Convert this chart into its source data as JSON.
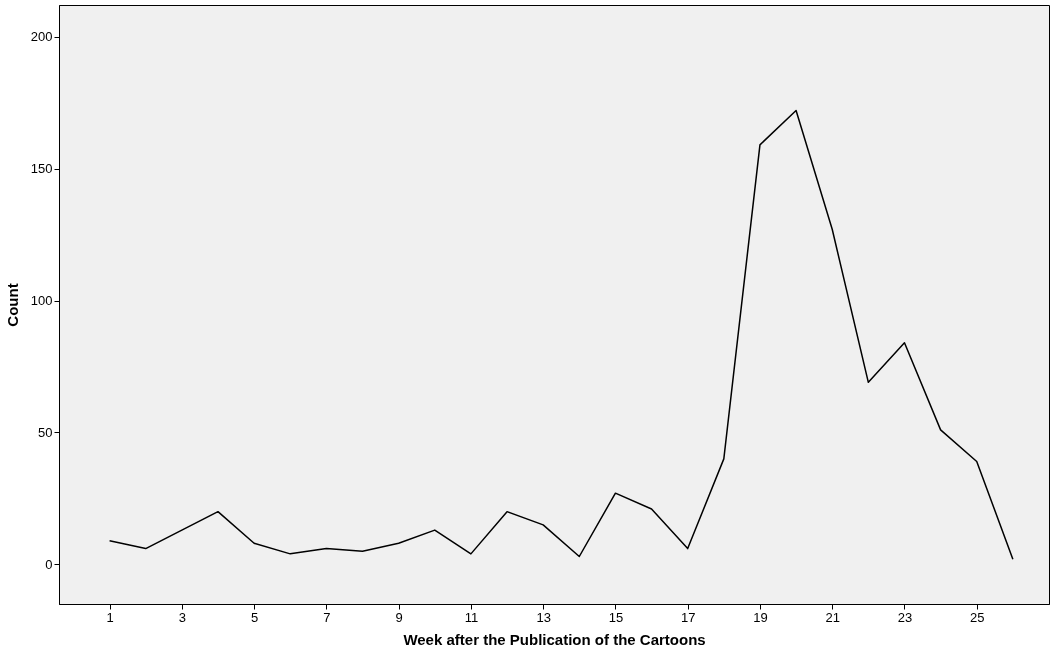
{
  "chart_data": {
    "type": "line",
    "xlabel": "Week after the Publication of the Cartoons",
    "ylabel": "Count",
    "x": [
      1,
      2,
      3,
      4,
      5,
      6,
      7,
      8,
      9,
      10,
      11,
      12,
      13,
      14,
      15,
      16,
      17,
      18,
      19,
      20,
      21,
      22,
      23,
      24,
      25,
      26
    ],
    "series": [
      {
        "color": "#000000",
        "values": [
          9,
          6,
          13,
          20,
          8,
          4,
          6,
          5,
          8,
          13,
          4,
          20,
          15,
          3,
          27,
          21,
          6,
          40,
          159,
          172,
          127,
          69,
          84,
          51,
          39,
          2
        ]
      }
    ],
    "xlim": [
      -0.4,
      27
    ],
    "xticks": [
      1,
      3,
      5,
      7,
      9,
      11,
      13,
      15,
      17,
      19,
      21,
      23,
      25
    ],
    "ylim": [
      -15,
      212
    ],
    "yticks": [
      0,
      50,
      100,
      150,
      200
    ],
    "grid": false,
    "marker": "none",
    "line_style": "solid"
  }
}
